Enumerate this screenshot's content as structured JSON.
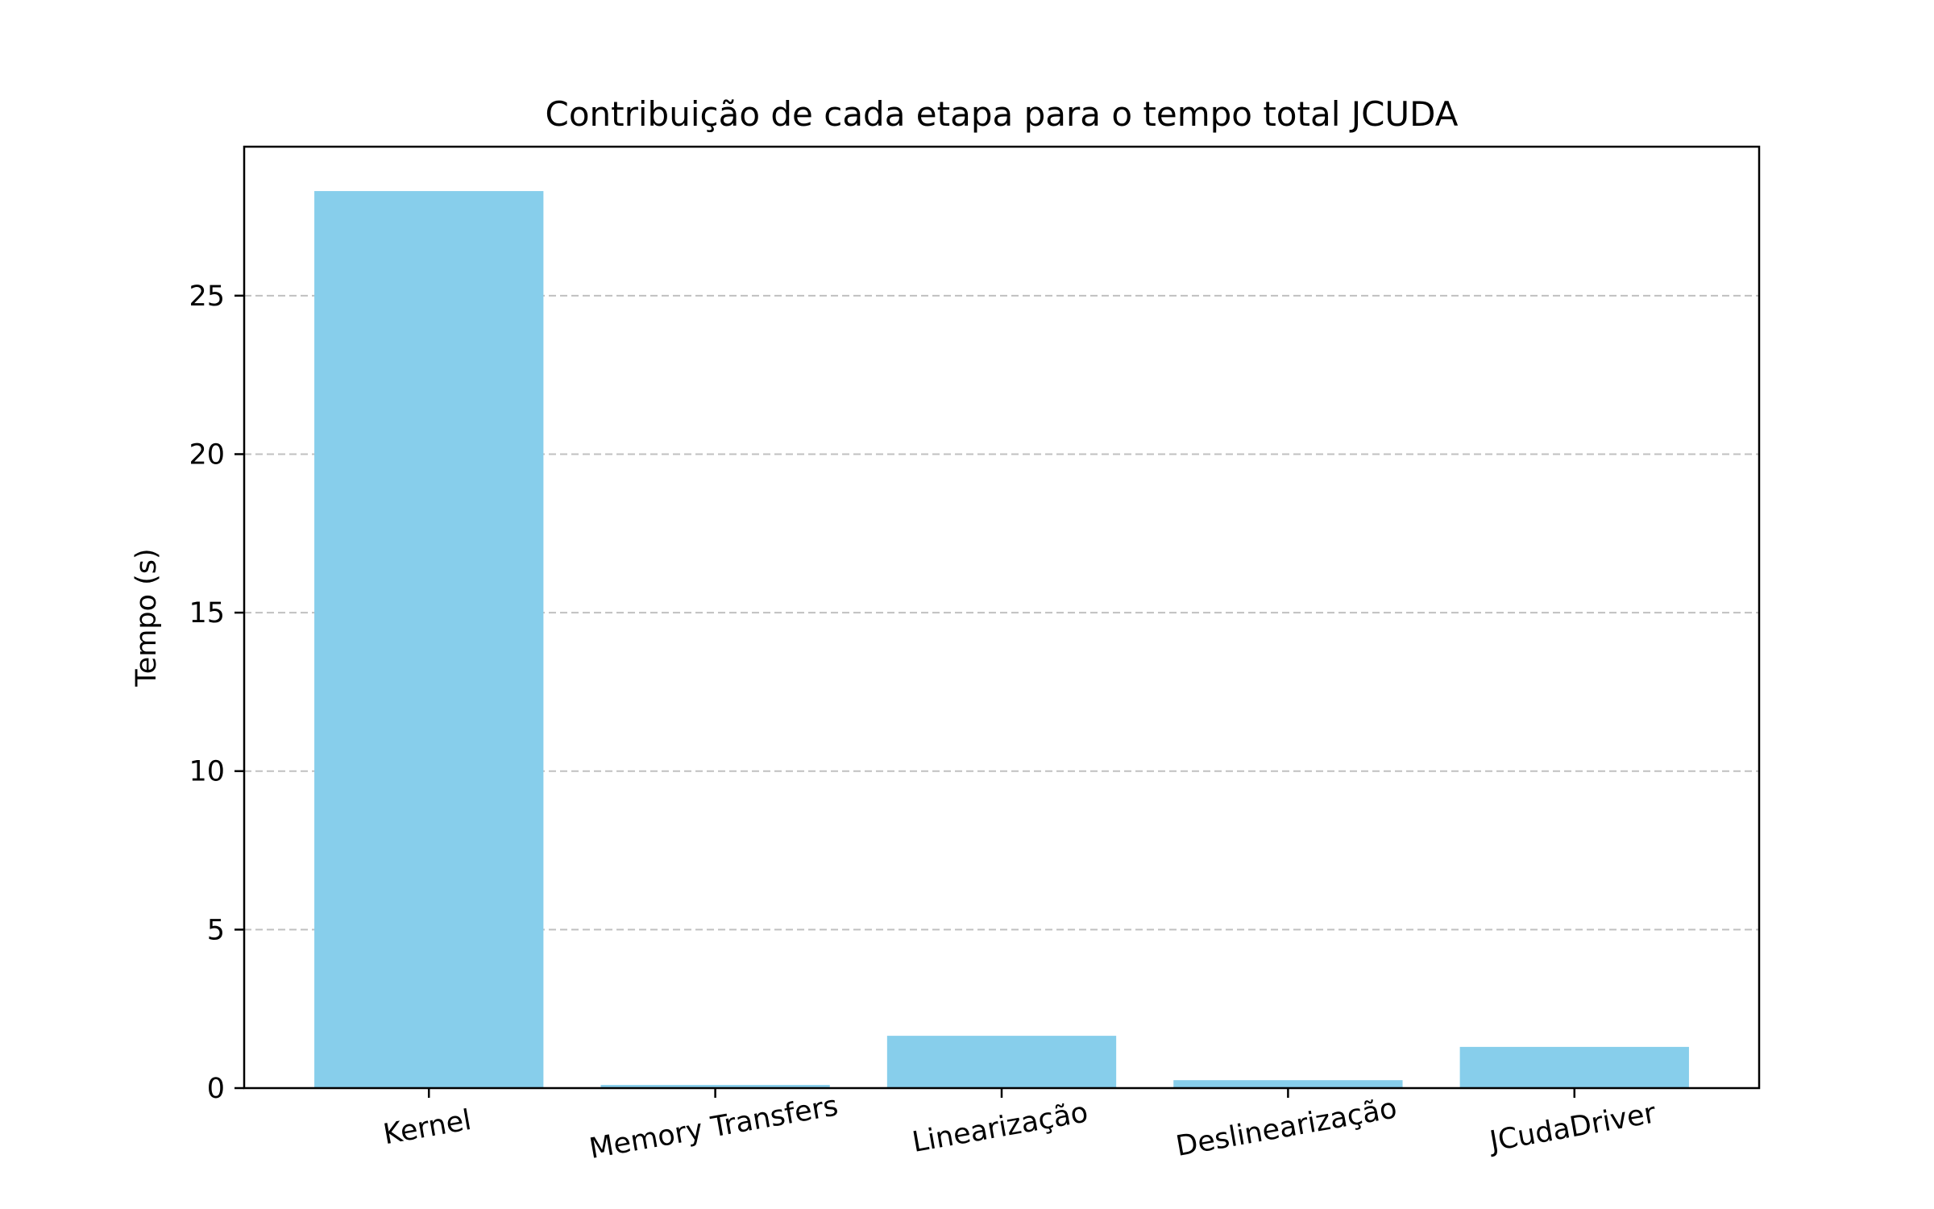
{
  "chart_data": {
    "type": "bar",
    "title": "Contribuição de cada etapa para o tempo total JCUDA",
    "xlabel": "",
    "ylabel": "Tempo (s)",
    "categories": [
      "Kernel",
      "Memory Transfers",
      "Linearização",
      "Deslinearização",
      "JCudaDriver"
    ],
    "values": [
      28.3,
      0.1,
      1.65,
      0.25,
      1.3
    ],
    "ylim": [
      0,
      29.7
    ],
    "yticks": [
      0,
      5,
      10,
      15,
      20,
      25
    ],
    "ytick_labels": [
      "0",
      "5",
      "10",
      "15",
      "20",
      "25"
    ],
    "x_tick_rotation_deg": -10,
    "grid": {
      "axis": "y",
      "style": "dashed",
      "color": "#c0c0c0"
    },
    "bar_color": "#87ceeb",
    "legend": "none"
  }
}
